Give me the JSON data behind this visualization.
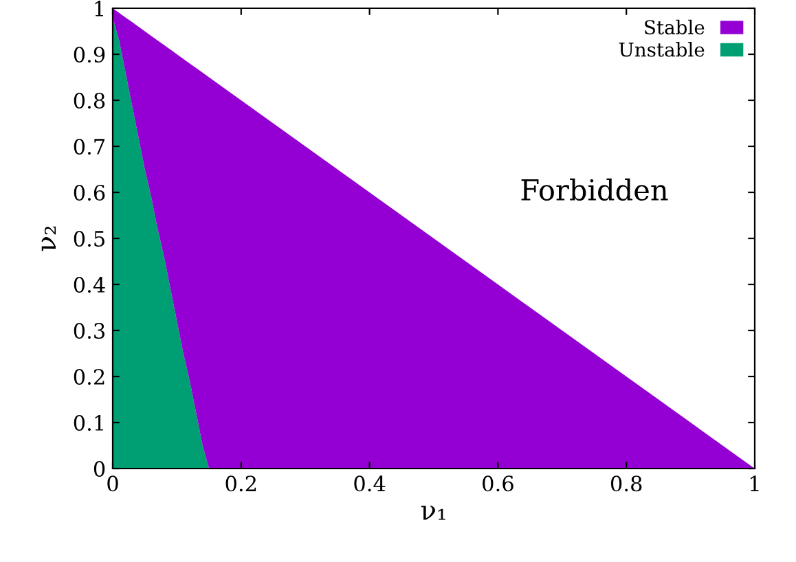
{
  "chart_data": {
    "type": "area",
    "stacked": true,
    "xlabel": "ν₁",
    "ylabel": "ν₂",
    "x": [
      0,
      0.01,
      0.02,
      0.03,
      0.04,
      0.05,
      0.06,
      0.07,
      0.08,
      0.09,
      0.1,
      0.11,
      0.12,
      0.13,
      0.14,
      0.15,
      0.2,
      0.4,
      0.6,
      0.8,
      1.0
    ],
    "series": [
      {
        "name": "Unstable",
        "color": "#009e73",
        "values": [
          0.98,
          0.93,
          0.86,
          0.79,
          0.72,
          0.65,
          0.59,
          0.52,
          0.46,
          0.39,
          0.32,
          0.25,
          0.19,
          0.12,
          0.05,
          0,
          0,
          0,
          0,
          0,
          0
        ]
      },
      {
        "name": "Stable",
        "color": "#9400d3",
        "values": [
          0.02,
          0.06,
          0.12,
          0.18,
          0.24,
          0.3,
          0.35,
          0.41,
          0.46,
          0.52,
          0.58,
          0.64,
          0.69,
          0.75,
          0.81,
          0.85,
          0.8,
          0.6,
          0.4,
          0.2,
          0
        ]
      }
    ],
    "xlim": [
      0,
      1
    ],
    "ylim": [
      0,
      1
    ],
    "xticks": [
      0,
      0.2,
      0.4,
      0.6,
      0.8,
      1
    ],
    "yticks": [
      0,
      0.1,
      0.2,
      0.3,
      0.4,
      0.5,
      0.6,
      0.7,
      0.8,
      0.9,
      1
    ],
    "annotations": [
      "Forbidden"
    ],
    "grid": false,
    "legend": "top right"
  }
}
